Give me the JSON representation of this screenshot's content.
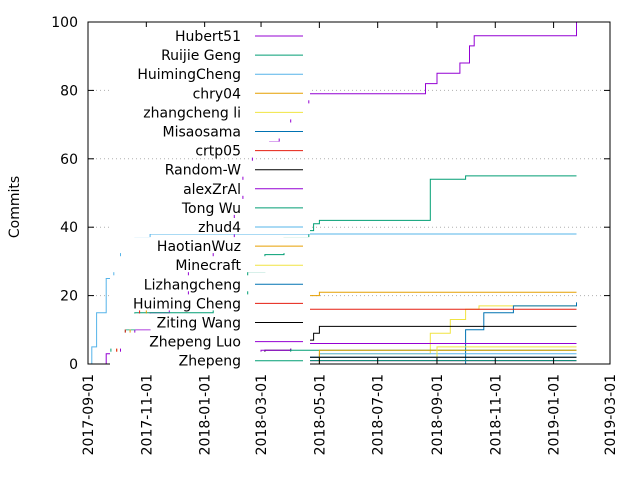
{
  "chart_data": {
    "type": "line",
    "title": "",
    "xlabel": "",
    "ylabel": "Commits",
    "ylim": [
      0,
      100
    ],
    "xlim": [
      "2017-09-01",
      "2019-03-01"
    ],
    "y_ticks": [
      0,
      20,
      40,
      60,
      80,
      100
    ],
    "x_ticks": [
      "2017-09-01",
      "2017-11-01",
      "2018-01-01",
      "2018-03-01",
      "2018-05-01",
      "2018-07-01",
      "2018-09-01",
      "2018-11-01",
      "2019-01-01",
      "2019-03-01"
    ],
    "grid": "horizontal dotted",
    "legend_position": "top-left",
    "step": true,
    "series": [
      {
        "name": "Hubert51",
        "color": "#9400d3",
        "points": [
          [
            "2017-09-05",
            0
          ],
          [
            "2017-09-20",
            3
          ],
          [
            "2017-10-05",
            6
          ],
          [
            "2017-10-20",
            10
          ],
          [
            "2017-11-05",
            15
          ],
          [
            "2017-11-25",
            20
          ],
          [
            "2017-12-15",
            30
          ],
          [
            "2018-01-10",
            35
          ],
          [
            "2018-02-01",
            45
          ],
          [
            "2018-02-10",
            55
          ],
          [
            "2018-02-20",
            62
          ],
          [
            "2018-03-10",
            65
          ],
          [
            "2018-03-20",
            70
          ],
          [
            "2018-04-01",
            75
          ],
          [
            "2018-04-20",
            79
          ],
          [
            "2018-08-10",
            79
          ],
          [
            "2018-08-20",
            82
          ],
          [
            "2018-09-01",
            85
          ],
          [
            "2018-09-25",
            88
          ],
          [
            "2018-10-05",
            93
          ],
          [
            "2018-10-10",
            96
          ],
          [
            "2019-01-20",
            96
          ],
          [
            "2019-01-25",
            100
          ]
        ]
      },
      {
        "name": "Ruijie Geng",
        "color": "#009e73",
        "points": [
          [
            "2017-09-10",
            0
          ],
          [
            "2017-09-25",
            5
          ],
          [
            "2017-10-10",
            10
          ],
          [
            "2017-10-20",
            15
          ],
          [
            "2018-01-10",
            18
          ],
          [
            "2018-02-01",
            20
          ],
          [
            "2018-02-15",
            27
          ],
          [
            "2018-03-05",
            32
          ],
          [
            "2018-03-25",
            37
          ],
          [
            "2018-04-20",
            39
          ],
          [
            "2018-04-25",
            41
          ],
          [
            "2018-05-01",
            42
          ],
          [
            "2018-08-20",
            42
          ],
          [
            "2018-08-25",
            54
          ],
          [
            "2018-10-01",
            55
          ],
          [
            "2019-01-25",
            55
          ]
        ]
      },
      {
        "name": "HuimingCheng",
        "color": "#56b4e9",
        "points": [
          [
            "2017-09-03",
            0
          ],
          [
            "2017-09-05",
            5
          ],
          [
            "2017-09-10",
            15
          ],
          [
            "2017-09-20",
            25
          ],
          [
            "2017-09-28",
            30
          ],
          [
            "2017-10-05",
            35
          ],
          [
            "2017-10-20",
            37
          ],
          [
            "2017-11-05",
            38
          ],
          [
            "2019-01-25",
            38
          ]
        ]
      },
      {
        "name": "chry04",
        "color": "#e69f00",
        "points": [
          [
            "2017-09-15",
            0
          ],
          [
            "2017-10-01",
            5
          ],
          [
            "2017-10-15",
            12
          ],
          [
            "2017-11-01",
            17
          ],
          [
            "2017-12-01",
            18
          ],
          [
            "2018-03-01",
            19
          ],
          [
            "2018-04-20",
            20
          ],
          [
            "2018-05-01",
            21
          ],
          [
            "2019-01-25",
            21
          ]
        ]
      },
      {
        "name": "zhangcheng li",
        "color": "#f0e442",
        "points": [
          [
            "2018-04-01",
            0
          ],
          [
            "2018-05-01",
            3
          ],
          [
            "2018-08-20",
            3
          ],
          [
            "2018-08-25",
            9
          ],
          [
            "2018-09-15",
            13
          ],
          [
            "2018-10-01",
            16
          ],
          [
            "2018-10-15",
            17
          ],
          [
            "2019-01-25",
            18
          ]
        ]
      },
      {
        "name": "Misaosama",
        "color": "#0072b2",
        "points": [
          [
            "2018-04-01",
            0
          ],
          [
            "2018-10-01",
            10
          ],
          [
            "2018-10-20",
            15
          ],
          [
            "2018-11-20",
            17
          ],
          [
            "2019-01-25",
            18
          ]
        ]
      },
      {
        "name": "crtp05",
        "color": "#e51e10",
        "points": [
          [
            "2017-09-25",
            0
          ],
          [
            "2017-10-01",
            8
          ],
          [
            "2017-10-10",
            11
          ],
          [
            "2017-10-25",
            16
          ],
          [
            "2019-01-25",
            16
          ]
        ]
      },
      {
        "name": "Random-W",
        "color": "#000000",
        "points": [
          [
            "2018-02-01",
            0
          ],
          [
            "2018-03-05",
            4
          ],
          [
            "2018-04-01",
            7
          ],
          [
            "2018-04-25",
            9
          ],
          [
            "2018-05-01",
            11
          ],
          [
            "2019-01-25",
            11
          ]
        ]
      },
      {
        "name": "alexZrAl",
        "color": "#9400d3",
        "points": [
          [
            "2018-01-20",
            0
          ],
          [
            "2018-03-01",
            4
          ],
          [
            "2018-04-01",
            6
          ],
          [
            "2019-01-25",
            6
          ]
        ]
      },
      {
        "name": "Tong Wu",
        "color": "#009e73",
        "points": [
          [
            "2018-01-20",
            0
          ],
          [
            "2018-02-15",
            2
          ],
          [
            "2018-04-01",
            4
          ],
          [
            "2018-05-01",
            4
          ],
          [
            "2019-01-25",
            4
          ]
        ]
      },
      {
        "name": "zhud4",
        "color": "#56b4e9",
        "points": [
          [
            "2018-01-20",
            0
          ],
          [
            "2018-02-20",
            2
          ],
          [
            "2018-05-01",
            3
          ],
          [
            "2019-01-25",
            3
          ]
        ]
      },
      {
        "name": "HaotianWuz",
        "color": "#e69f00",
        "points": [
          [
            "2018-04-20",
            0
          ],
          [
            "2018-05-01",
            4
          ],
          [
            "2019-01-25",
            4
          ]
        ]
      },
      {
        "name": "Minecraft",
        "color": "#f0e442",
        "points": [
          [
            "2018-08-20",
            0
          ],
          [
            "2018-09-01",
            5
          ],
          [
            "2019-01-25",
            5
          ]
        ]
      },
      {
        "name": "Lizhangcheng",
        "color": "#0072b2",
        "points": [
          [
            "2018-02-20",
            0
          ],
          [
            "2018-04-01",
            2
          ],
          [
            "2019-01-25",
            2
          ]
        ]
      },
      {
        "name": "Huiming Cheng",
        "color": "#e51e10",
        "points": [
          [
            "2018-02-20",
            0
          ],
          [
            "2018-03-15",
            1
          ],
          [
            "2019-01-25",
            1
          ]
        ]
      },
      {
        "name": "Ziting Wang",
        "color": "#000000",
        "points": [
          [
            "2018-02-15",
            0
          ],
          [
            "2018-03-01",
            2
          ],
          [
            "2019-01-25",
            2
          ]
        ]
      },
      {
        "name": "Zhepeng Luo",
        "color": "#9400d3",
        "points": [
          [
            "2018-02-01",
            0
          ],
          [
            "2018-02-20",
            1
          ],
          [
            "2019-01-25",
            1
          ]
        ]
      },
      {
        "name": "Zhepeng",
        "color": "#009e73",
        "points": [
          [
            "2018-02-01",
            0
          ],
          [
            "2018-02-20",
            1
          ],
          [
            "2019-01-25",
            1
          ]
        ]
      }
    ]
  }
}
